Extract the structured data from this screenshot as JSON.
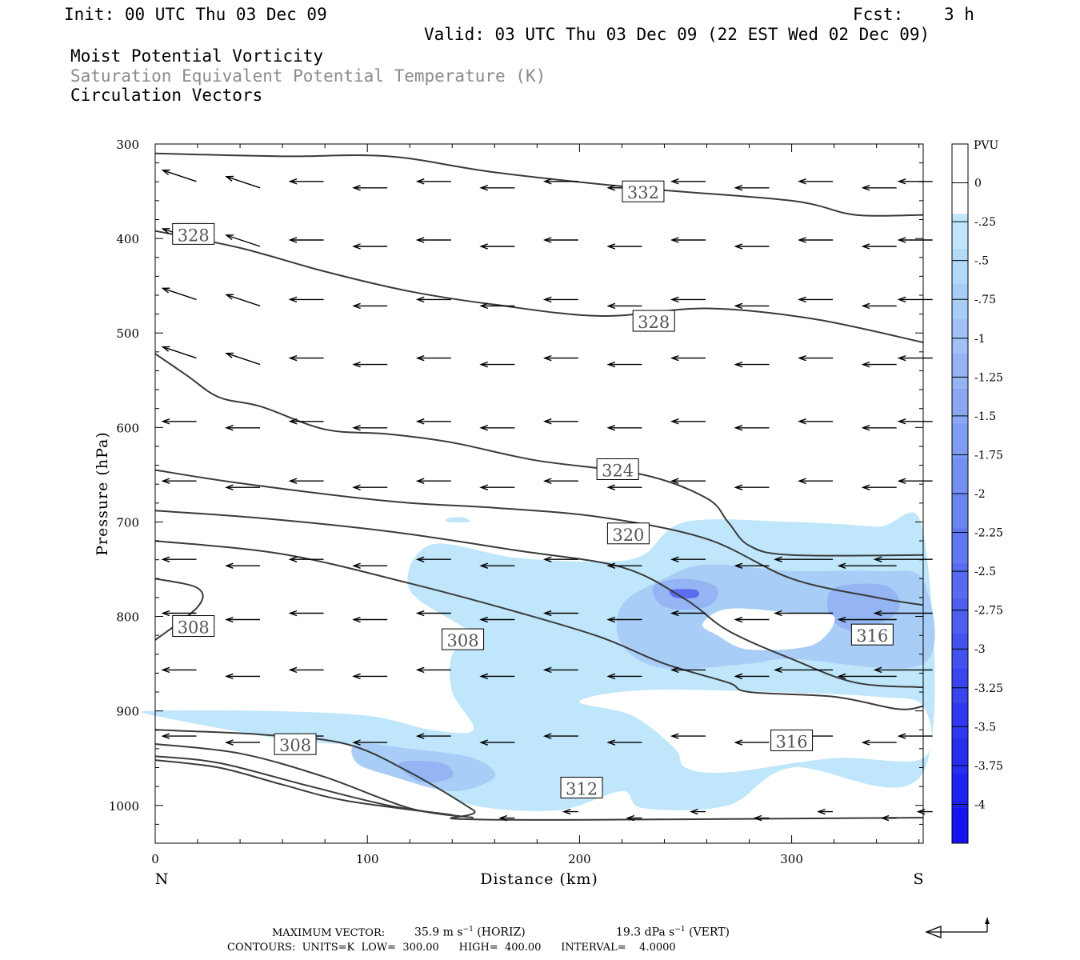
{
  "header": {
    "init": "Init: 00 UTC Thu 03 Dec 09",
    "fcst_label": "Fcst:",
    "fcst_value": "3 h",
    "valid": "Valid: 03 UTC Thu 03 Dec 09 (22 EST Wed 02 Dec 09)",
    "field1": "Moist Potential Vorticity",
    "field2": "Saturation Equivalent Potential Temperature (K)",
    "field3": "Circulation Vectors"
  },
  "footer": {
    "max_vector_label": "MAXIMUM VECTOR:",
    "horiz": "35.9 m s",
    "horiz_unit": "(HORIZ)",
    "vert": "19.3 dPa s",
    "vert_unit": "(VERT)",
    "contours": "CONTOURS:  UNITS=K  LOW=  300.00      HIGH=  400.00      INTERVAL=    4.0000"
  },
  "colors": {
    "contour": "#3a3a3a",
    "shade_levels": [
      "#ffffff",
      "#bfe6fa",
      "#a8cdf6",
      "#94b4f4",
      "#7e96f2",
      "#5c6cef",
      "#3a44ee",
      "#1a22f0"
    ],
    "colorbar": [
      "#ffffff",
      "#ffffff",
      "#bfe6fa",
      "#b3d9f8",
      "#a8cdf6",
      "#9fc1f5",
      "#94b4f4",
      "#8aa8f3",
      "#7e9cf2",
      "#7490f2",
      "#6a84f1",
      "#6078f0",
      "#566bef",
      "#4c5fef",
      "#4252ef",
      "#3946ef",
      "#303af0",
      "#262ef0",
      "#1d22f1",
      "#1414f2"
    ]
  },
  "chart_data": {
    "type": "cross-section",
    "xlabel": "Distance (km)",
    "ylabel": "Pressure (hPa)",
    "xlim": [
      0,
      362
    ],
    "ylim": [
      1040,
      300
    ],
    "x_ticks": [
      0,
      100,
      200,
      300
    ],
    "y_ticks": [
      300,
      400,
      500,
      600,
      700,
      800,
      900,
      1000
    ],
    "x_end_labels": {
      "left": "N",
      "right": "S"
    },
    "colorbar": {
      "unit": "PVU",
      "tick_labels": [
        "0",
        "-.25",
        "-.5",
        "-.75",
        "-1",
        "-1.25",
        "-1.5",
        "-1.75",
        "-2",
        "-2.25",
        "-2.5",
        "-2.75",
        "-3",
        "-3.25",
        "-3.5",
        "-3.75",
        "-4"
      ],
      "range": [
        -4.25,
        0.25
      ]
    },
    "contours_theta_es": [
      {
        "level": 332,
        "points": [
          [
            0,
            310
          ],
          [
            60,
            313
          ],
          [
            110,
            313
          ],
          [
            160,
            330
          ],
          [
            230,
            347
          ],
          [
            300,
            360
          ],
          [
            330,
            375
          ],
          [
            362,
            375
          ]
        ]
      },
      {
        "level": 328,
        "points": [
          [
            0,
            392
          ],
          [
            40,
            410
          ],
          [
            80,
            435
          ],
          [
            120,
            456
          ],
          [
            160,
            470
          ],
          [
            210,
            482
          ],
          [
            260,
            474
          ],
          [
            310,
            485
          ],
          [
            362,
            510
          ]
        ]
      },
      {
        "level": 324,
        "points": [
          [
            0,
            522
          ],
          [
            15,
            545
          ],
          [
            30,
            568
          ],
          [
            50,
            578
          ],
          [
            80,
            602
          ],
          [
            110,
            607
          ],
          [
            140,
            616
          ],
          [
            180,
            635
          ],
          [
            230,
            650
          ],
          [
            260,
            675
          ],
          [
            270,
            700
          ],
          [
            280,
            725
          ],
          [
            300,
            735
          ],
          [
            362,
            735
          ]
        ]
      },
      {
        "level": 320,
        "points": [
          [
            0,
            645
          ],
          [
            40,
            659
          ],
          [
            110,
            678
          ],
          [
            160,
            685
          ],
          [
            210,
            695
          ],
          [
            260,
            718
          ],
          [
            300,
            760
          ],
          [
            340,
            780
          ],
          [
            362,
            788
          ]
        ]
      },
      {
        "level": 316,
        "points": [
          [
            0,
            688
          ],
          [
            50,
            696
          ],
          [
            110,
            710
          ],
          [
            170,
            730
          ],
          [
            220,
            748
          ],
          [
            250,
            782
          ],
          [
            270,
            815
          ],
          [
            300,
            845
          ],
          [
            330,
            870
          ],
          [
            362,
            875
          ]
        ]
      },
      {
        "level": 312,
        "points": [
          [
            0,
            720
          ],
          [
            60,
            734
          ],
          [
            120,
            765
          ],
          [
            170,
            795
          ],
          [
            210,
            822
          ],
          [
            240,
            850
          ],
          [
            270,
            870
          ],
          [
            280,
            880
          ],
          [
            320,
            885
          ],
          [
            350,
            898
          ],
          [
            362,
            895
          ]
        ]
      },
      {
        "level": 308,
        "points": [
          [
            0,
            760
          ],
          [
            20,
            770
          ],
          [
            20,
            790
          ],
          [
            0,
            825
          ]
        ]
      },
      {
        "level": 308,
        "points": [
          [
            0,
            920
          ],
          [
            50,
            925
          ],
          [
            90,
            935
          ],
          [
            120,
            965
          ],
          [
            150,
            1005
          ],
          [
            155,
            1015
          ],
          [
            362,
            1013
          ]
        ]
      },
      {
        "level": 308,
        "points": [
          [
            0,
            935
          ],
          [
            40,
            945
          ],
          [
            80,
            970
          ],
          [
            120,
            1003
          ],
          [
            150,
            1013
          ]
        ]
      },
      {
        "level": 304,
        "points": [
          [
            0,
            948
          ],
          [
            30,
            955
          ],
          [
            70,
            978
          ],
          [
            110,
            1000
          ],
          [
            145,
            1012
          ]
        ]
      },
      {
        "level": 300,
        "points": [
          [
            0,
            952
          ],
          [
            30,
            960
          ],
          [
            60,
            978
          ],
          [
            90,
            995
          ],
          [
            140,
            1010
          ]
        ]
      }
    ],
    "shaded_regions_pvu": [
      {
        "min_pvu": -0.25,
        "polygon": [
          [
            130,
            724
          ],
          [
            170,
            738
          ],
          [
            210,
            742
          ],
          [
            230,
            735
          ],
          [
            250,
            700
          ],
          [
            300,
            700
          ],
          [
            340,
            705
          ],
          [
            362,
            710
          ],
          [
            362,
            965
          ],
          [
            300,
            960
          ],
          [
            270,
            1000
          ],
          [
            230,
            1003
          ],
          [
            220,
            985
          ],
          [
            190,
            1005
          ],
          [
            150,
            1000
          ],
          [
            130,
            975
          ],
          [
            100,
            940
          ],
          [
            60,
            930
          ],
          [
            0,
            905
          ],
          [
            0,
            900
          ],
          [
            50,
            900
          ],
          [
            100,
            905
          ],
          [
            130,
            920
          ],
          [
            150,
            920
          ],
          [
            140,
            880
          ],
          [
            140,
            840
          ],
          [
            150,
            820
          ],
          [
            120,
            772
          ]
        ]
      },
      {
        "min_pvu": -0.25,
        "polygon": [
          [
            138,
            696
          ],
          [
            145,
            695
          ],
          [
            148,
            700
          ],
          [
            138,
            700
          ]
        ]
      },
      {
        "min_pvu": -0.75,
        "polygon": [
          [
            220,
            788
          ],
          [
            240,
            760
          ],
          [
            260,
            745
          ],
          [
            300,
            752
          ],
          [
            340,
            752
          ],
          [
            362,
            762
          ],
          [
            362,
            850
          ],
          [
            300,
            845
          ],
          [
            280,
            850
          ],
          [
            240,
            855
          ],
          [
            220,
            830
          ]
        ]
      },
      {
        "min_pvu": -0.75,
        "polygon": [
          [
            95,
            935
          ],
          [
            120,
            940
          ],
          [
            150,
            950
          ],
          [
            160,
            970
          ],
          [
            140,
            985
          ],
          [
            110,
            968
          ],
          [
            95,
            955
          ]
        ]
      },
      {
        "min_pvu": -1.5,
        "polygon": [
          [
            235,
            768
          ],
          [
            250,
            760
          ],
          [
            265,
            770
          ],
          [
            260,
            790
          ],
          [
            240,
            790
          ]
        ]
      },
      {
        "min_pvu": -1.5,
        "polygon": [
          [
            320,
            770
          ],
          [
            345,
            768
          ],
          [
            350,
            795
          ],
          [
            330,
            815
          ],
          [
            318,
            800
          ]
        ]
      },
      {
        "min_pvu": -2.25,
        "polygon": [
          [
            243,
            772
          ],
          [
            255,
            772
          ],
          [
            255,
            780
          ],
          [
            245,
            780
          ]
        ]
      },
      {
        "min_pvu": -1.25,
        "polygon": [
          [
            115,
            955
          ],
          [
            135,
            955
          ],
          [
            140,
            970
          ],
          [
            125,
            975
          ]
        ]
      }
    ],
    "clear_regions": [
      {
        "polygon": [
          [
            258,
            808
          ],
          [
            270,
            792
          ],
          [
            300,
            796
          ],
          [
            320,
            800
          ],
          [
            310,
            830
          ],
          [
            280,
            835
          ],
          [
            265,
            820
          ]
        ]
      },
      {
        "polygon": [
          [
            200,
            890
          ],
          [
            230,
            878
          ],
          [
            290,
            880
          ],
          [
            340,
            885
          ],
          [
            362,
            895
          ],
          [
            362,
            950
          ],
          [
            320,
            950
          ],
          [
            270,
            965
          ],
          [
            250,
            960
          ],
          [
            245,
            940
          ],
          [
            225,
            905
          ]
        ]
      }
    ],
    "vector_rows_hpa": [
      343,
      405,
      468,
      530,
      597,
      660,
      743,
      800,
      860,
      930,
      1010
    ],
    "contour_labels": [
      {
        "text": "332",
        "x": 230,
        "y": 351
      },
      {
        "text": "328",
        "x": 18,
        "y": 396
      },
      {
        "text": "328",
        "x": 235,
        "y": 488
      },
      {
        "text": "324",
        "x": 218,
        "y": 645
      },
      {
        "text": "320",
        "x": 223,
        "y": 713
      },
      {
        "text": "316",
        "x": 338,
        "y": 820
      },
      {
        "text": "316",
        "x": 300,
        "y": 932
      },
      {
        "text": "312",
        "x": 201,
        "y": 982
      },
      {
        "text": "308",
        "x": 18,
        "y": 811
      },
      {
        "text": "308",
        "x": 145,
        "y": 825
      },
      {
        "text": "308",
        "x": 66,
        "y": 936
      }
    ]
  }
}
